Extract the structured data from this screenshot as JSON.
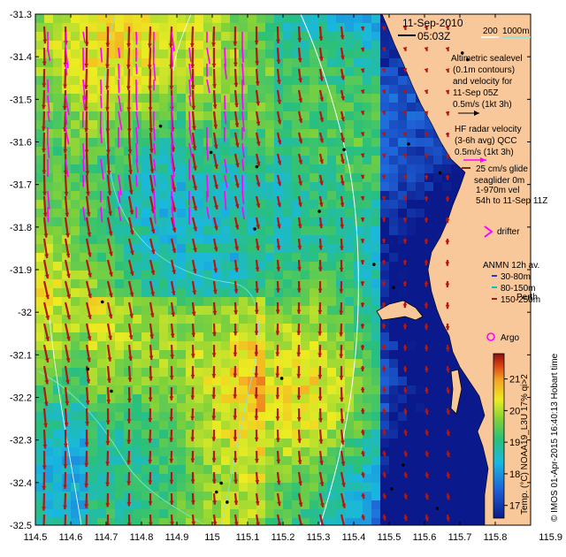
{
  "map": {
    "title_date": "11-Sep-2010",
    "title_time": "05:03Z",
    "lon_ticks": [
      "114.5",
      "114.6",
      "114.7",
      "114.8",
      "114.9",
      "115",
      "115.1",
      "115.2",
      "115.3",
      "115.4",
      "115.5",
      "115.6",
      "115.7",
      "115.8",
      "115.9"
    ],
    "lat_ticks": [
      "-31.3",
      "-31.4",
      "-31.5",
      "-31.6",
      "-31.7",
      "-31.8",
      "-31.9",
      "-32",
      "-32.1",
      "-32.2",
      "-32.3",
      "-32.4",
      "-32.5"
    ],
    "lon_range": [
      114.5,
      115.9
    ],
    "lat_range": [
      -32.5,
      -31.3
    ],
    "isobath_labels": [
      "200",
      "1000m"
    ],
    "place_labels": [
      "Perth"
    ],
    "colors": {
      "land": "#f9c89a",
      "velocity_arrow": "#b5160e",
      "hf_radar_arrow": "#ff00ff",
      "isobath": "#7ee8e8",
      "isobath_200": "#ffffff"
    }
  },
  "legend": {
    "altimetric_lines": [
      "Altimetric sealevel",
      "(0.1m contours)",
      "and velocity for",
      "11-Sep 05Z",
      "0.5m/s (1kt 3h)"
    ],
    "hf_lines": [
      "HF radar velocity",
      "(3-6h avg) QCC",
      "0.5m/s (1kt 3h)"
    ],
    "glider_lines": [
      "25 cm/s glide",
      "seaglider 0m",
      "1-970m vel",
      "54h to 11-Sep 11Z"
    ],
    "drifter": "drifter",
    "anmn_title": "ANMN 12h av.",
    "anmn_items": [
      {
        "label": "30-80m",
        "color": "#1f3fd8"
      },
      {
        "label": "80-150m",
        "color": "#00c8c8"
      },
      {
        "label": "150-250m",
        "color": "#b5160e"
      }
    ],
    "argo": "Argo"
  },
  "colorbar": {
    "ticks": [
      "21",
      "20",
      "19",
      "18",
      "17"
    ],
    "range": [
      16.6,
      21.8
    ],
    "label": "Temp. (°C) NOAA19_L3U 17% qi>2"
  },
  "credit": "© IMOS 01-Apr-2015 16:40:13 Hobart time"
}
